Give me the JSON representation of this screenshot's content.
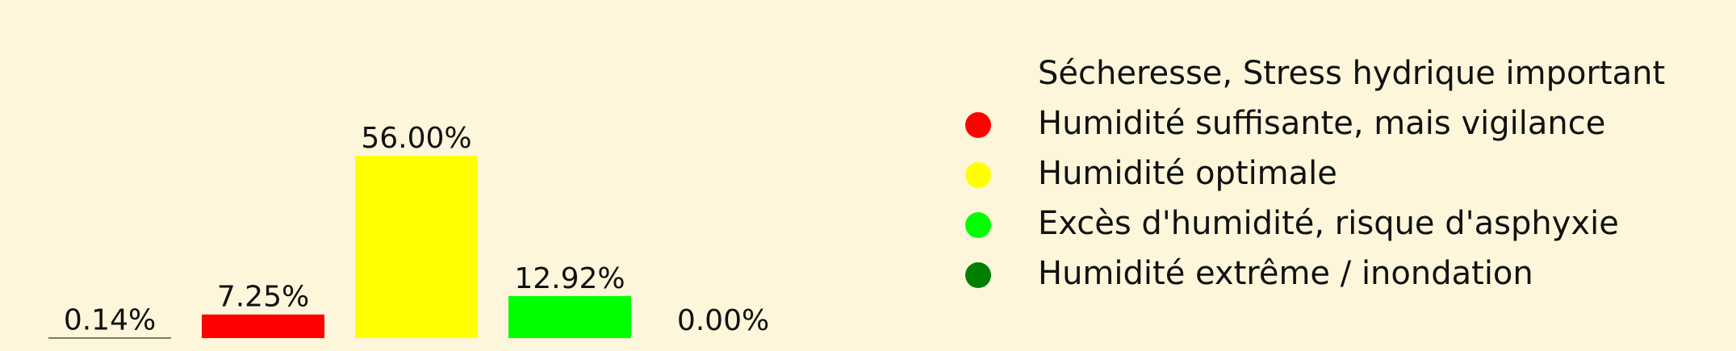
{
  "chart_data": {
    "type": "bar",
    "values": [
      0.14,
      7.25,
      56.0,
      12.92,
      0.0
    ],
    "value_labels": [
      "0.14%",
      "7.25%",
      "56.00%",
      "12.92%",
      "0.00%"
    ],
    "colors": [
      "#000000",
      "#ff0000",
      "#ffff00",
      "#00ff00",
      "#008000"
    ],
    "ylim": [
      0,
      60
    ],
    "grid": false,
    "legend": {
      "placement": "right",
      "entries": [
        {
          "label": "Sécheresse, Stress hydrique important",
          "color": "#000000",
          "marker_visible": false
        },
        {
          "label": "Humidité suffisante, mais vigilance",
          "color": "#ff0000",
          "marker_visible": true
        },
        {
          "label": "Humidité optimale",
          "color": "#ffff00",
          "marker_visible": true
        },
        {
          "label": "Excès d'humidité, risque d'asphyxie",
          "color": "#00ff00",
          "marker_visible": true
        },
        {
          "label": "Humidité extrême / inondation",
          "color": "#008000",
          "marker_visible": true
        }
      ]
    }
  }
}
